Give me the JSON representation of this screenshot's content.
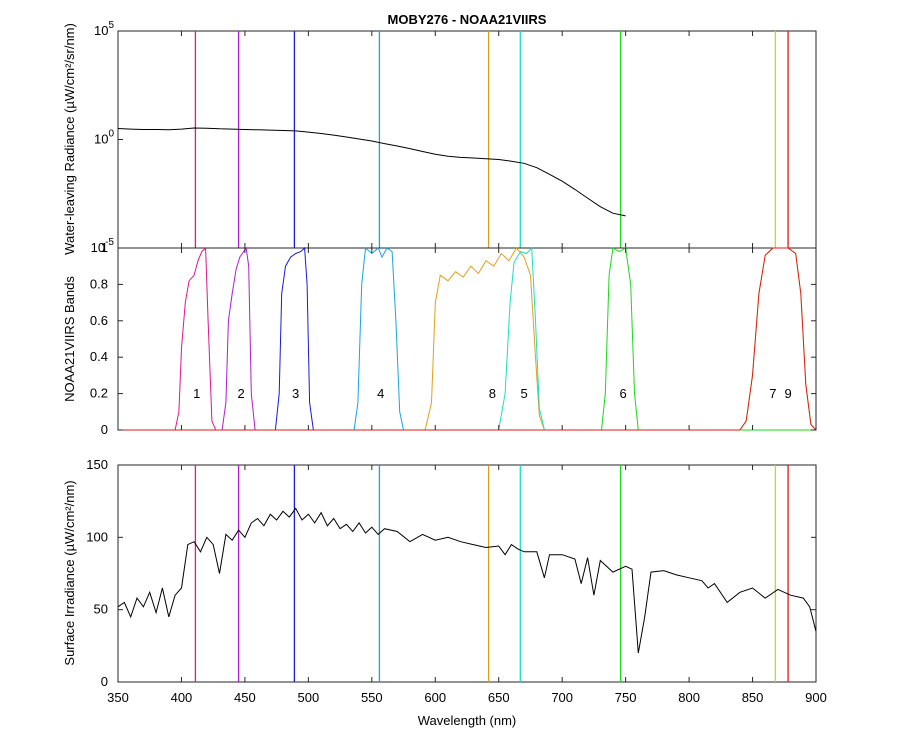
{
  "chart_data": [
    {
      "panel": "top",
      "type": "line",
      "title": "MOBY276 - NOAA21VIIRS",
      "ylabel": "Water-leaving Radiance (µW/cm²/sr/nm)",
      "xlim": [
        350,
        900
      ],
      "ylim": [
        1e-05,
        100000
      ],
      "yscale": "log",
      "yticks": [
        {
          "value": 1e-05,
          "base": "10",
          "exp": "-5"
        },
        {
          "value": 1,
          "base": "10",
          "exp": "0"
        },
        {
          "value": 100000,
          "base": "10",
          "exp": "5"
        }
      ],
      "series": [
        {
          "color": "#000000",
          "x": [
            350,
            360,
            370,
            380,
            390,
            400,
            410,
            420,
            430,
            440,
            450,
            460,
            470,
            480,
            490,
            500,
            510,
            520,
            530,
            540,
            550,
            560,
            570,
            580,
            590,
            600,
            610,
            620,
            630,
            640,
            650,
            660,
            670,
            680,
            690,
            700,
            710,
            720,
            730,
            740,
            750
          ],
          "y": [
            3.2,
            3.0,
            2.9,
            2.9,
            2.8,
            3.0,
            3.4,
            3.3,
            3.1,
            3.0,
            2.9,
            2.8,
            2.7,
            2.6,
            2.5,
            2.2,
            1.9,
            1.6,
            1.3,
            1.05,
            0.85,
            0.65,
            0.5,
            0.38,
            0.28,
            0.21,
            0.17,
            0.15,
            0.14,
            0.13,
            0.12,
            0.1,
            0.08,
            0.05,
            0.025,
            0.012,
            0.005,
            0.002,
            0.0008,
            0.0004,
            0.0003
          ]
        }
      ],
      "vlines": [
        {
          "x": 411,
          "color": "#e0158f"
        },
        {
          "x": 445,
          "color": "#b01ed0"
        },
        {
          "x": 489,
          "color": "#1a1ad8"
        },
        {
          "x": 556,
          "color": "#1aa3e0"
        },
        {
          "x": 642,
          "color": "#d8a01a"
        },
        {
          "x": 667,
          "color": "#1ae0c0"
        },
        {
          "x": 746,
          "color": "#1ad81a"
        },
        {
          "x": 868,
          "color": "#a8e81a"
        },
        {
          "x": 878,
          "color": "#e01a1a"
        }
      ]
    },
    {
      "panel": "middle",
      "type": "line",
      "ylabel": "NOAA21VIIRS Bands",
      "xlim": [
        350,
        900
      ],
      "ylim": [
        0,
        1
      ],
      "yticks": [
        "0",
        "0.2",
        "0.4",
        "0.6",
        "0.8",
        "1"
      ],
      "band_labels": [
        {
          "text": "1",
          "x": 412
        },
        {
          "text": "2",
          "x": 447
        },
        {
          "text": "3",
          "x": 490
        },
        {
          "text": "4",
          "x": 557
        },
        {
          "text": "8",
          "x": 645
        },
        {
          "text": "5",
          "x": 670
        },
        {
          "text": "6",
          "x": 748
        },
        {
          "text": "7",
          "x": 866
        },
        {
          "text": "9",
          "x": 878
        }
      ],
      "series": [
        {
          "name": "1",
          "color": "#e0158f",
          "x": [
            350,
            395,
            398,
            400,
            403,
            406,
            410,
            413,
            416,
            419,
            421,
            424,
            427,
            900
          ],
          "y": [
            0,
            0,
            0.1,
            0.45,
            0.7,
            0.82,
            0.85,
            0.93,
            0.98,
            1.0,
            0.6,
            0.05,
            0,
            0
          ]
        },
        {
          "name": "2",
          "color": "#b01ed0",
          "x": [
            350,
            432,
            435,
            437,
            440,
            443,
            446,
            449,
            451,
            453,
            455,
            458,
            900
          ],
          "y": [
            0,
            0,
            0.15,
            0.6,
            0.75,
            0.88,
            0.95,
            0.98,
            1.0,
            0.9,
            0.2,
            0,
            0
          ]
        },
        {
          "name": "3",
          "color": "#1a1ad8",
          "x": [
            350,
            474,
            477,
            479,
            482,
            486,
            490,
            494,
            497,
            499,
            501,
            504,
            900
          ],
          "y": [
            0,
            0,
            0.2,
            0.75,
            0.9,
            0.95,
            0.97,
            0.98,
            1.0,
            0.8,
            0.15,
            0,
            0
          ]
        },
        {
          "name": "4",
          "color": "#1aa3e0",
          "x": [
            350,
            536,
            539,
            542,
            545,
            550,
            555,
            558,
            562,
            566,
            569,
            572,
            575,
            900
          ],
          "y": [
            0,
            0,
            0.15,
            0.8,
            1.0,
            0.97,
            1.0,
            0.95,
            1.0,
            0.98,
            0.6,
            0.1,
            0,
            0
          ]
        },
        {
          "name": "8",
          "color": "#e0a01a",
          "x": [
            350,
            592,
            597,
            600,
            604,
            610,
            616,
            622,
            628,
            634,
            640,
            646,
            652,
            658,
            664,
            670,
            675,
            679,
            682,
            686,
            900
          ],
          "y": [
            0,
            0,
            0.15,
            0.7,
            0.85,
            0.82,
            0.87,
            0.84,
            0.9,
            0.86,
            0.93,
            0.9,
            0.97,
            0.93,
            1.0,
            0.95,
            0.85,
            0.4,
            0.08,
            0,
            0
          ]
        },
        {
          "name": "5",
          "color": "#1ae0c0",
          "x": [
            350,
            650,
            655,
            659,
            662,
            667,
            672,
            676,
            679,
            682,
            686,
            900
          ],
          "y": [
            0,
            0,
            0.2,
            0.7,
            0.92,
            0.98,
            0.97,
            1.0,
            0.6,
            0.12,
            0,
            0
          ]
        },
        {
          "name": "6",
          "color": "#1ad81a",
          "x": [
            350,
            731,
            734,
            737,
            740,
            745,
            750,
            754,
            757,
            760,
            900
          ],
          "y": [
            0,
            0,
            0.2,
            0.85,
            1.0,
            0.98,
            1.0,
            0.8,
            0.2,
            0,
            0
          ]
        },
        {
          "name": "7",
          "color": "#a8e81a",
          "x": [
            350,
            840,
            845,
            850,
            855,
            860,
            866,
            872,
            878,
            884,
            888,
            892,
            896,
            900
          ],
          "y": [
            0,
            0,
            0.05,
            0.3,
            0.75,
            0.96,
            1.0,
            1.0,
            1.0,
            0.97,
            0.75,
            0.25,
            0.03,
            0
          ]
        },
        {
          "name": "9",
          "color": "#e01a1a",
          "x": [
            350,
            840,
            845,
            850,
            855,
            860,
            866,
            872,
            878,
            884,
            888,
            892,
            896,
            900
          ],
          "y": [
            0,
            0,
            0.05,
            0.3,
            0.75,
            0.96,
            1.0,
            1.0,
            1.0,
            0.97,
            0.75,
            0.25,
            0.03,
            0
          ]
        }
      ]
    },
    {
      "panel": "bottom",
      "type": "line",
      "xlabel": "Wavelength (nm)",
      "ylabel": "Surface Irradiance (µW/cm²/nm)",
      "xlim": [
        350,
        900
      ],
      "ylim": [
        0,
        150
      ],
      "yticks": [
        "0",
        "50",
        "100",
        "150"
      ],
      "xticks": [
        "350",
        "400",
        "450",
        "500",
        "550",
        "600",
        "650",
        "700",
        "750",
        "800",
        "850",
        "900"
      ],
      "series": [
        {
          "color": "#000000",
          "x": [
            350,
            355,
            360,
            365,
            370,
            375,
            380,
            385,
            390,
            395,
            400,
            405,
            410,
            415,
            420,
            425,
            430,
            435,
            440,
            445,
            450,
            455,
            460,
            465,
            470,
            475,
            480,
            485,
            490,
            495,
            500,
            505,
            510,
            515,
            520,
            525,
            530,
            535,
            540,
            545,
            550,
            555,
            560,
            570,
            580,
            590,
            600,
            610,
            620,
            630,
            640,
            650,
            655,
            660,
            665,
            670,
            680,
            686,
            690,
            700,
            710,
            715,
            720,
            725,
            730,
            740,
            750,
            755,
            760,
            765,
            770,
            780,
            790,
            800,
            810,
            815,
            820,
            830,
            840,
            850,
            860,
            870,
            880,
            890,
            895,
            900
          ],
          "y": [
            52,
            55,
            45,
            58,
            52,
            62,
            48,
            65,
            45,
            60,
            65,
            95,
            97,
            90,
            100,
            95,
            75,
            102,
            98,
            105,
            100,
            110,
            113,
            108,
            116,
            112,
            118,
            114,
            120,
            112,
            116,
            110,
            117,
            108,
            113,
            106,
            109,
            104,
            110,
            103,
            107,
            102,
            106,
            104,
            97,
            102,
            98,
            100,
            97,
            95,
            93,
            94,
            88,
            95,
            92,
            90,
            90,
            72,
            88,
            88,
            85,
            68,
            86,
            60,
            84,
            76,
            80,
            78,
            20,
            45,
            76,
            77,
            74,
            72,
            70,
            65,
            68,
            55,
            62,
            65,
            58,
            64,
            60,
            58,
            52,
            35
          ]
        }
      ],
      "vlines": [
        {
          "x": 411,
          "color": "#e0158f"
        },
        {
          "x": 445,
          "color": "#b01ed0"
        },
        {
          "x": 489,
          "color": "#1a1ad8"
        },
        {
          "x": 556,
          "color": "#1aa3e0"
        },
        {
          "x": 642,
          "color": "#d8a01a"
        },
        {
          "x": 667,
          "color": "#1ae0c0"
        },
        {
          "x": 746,
          "color": "#1ad81a"
        },
        {
          "x": 868,
          "color": "#a8e81a"
        },
        {
          "x": 878,
          "color": "#e01a1a"
        }
      ]
    }
  ]
}
